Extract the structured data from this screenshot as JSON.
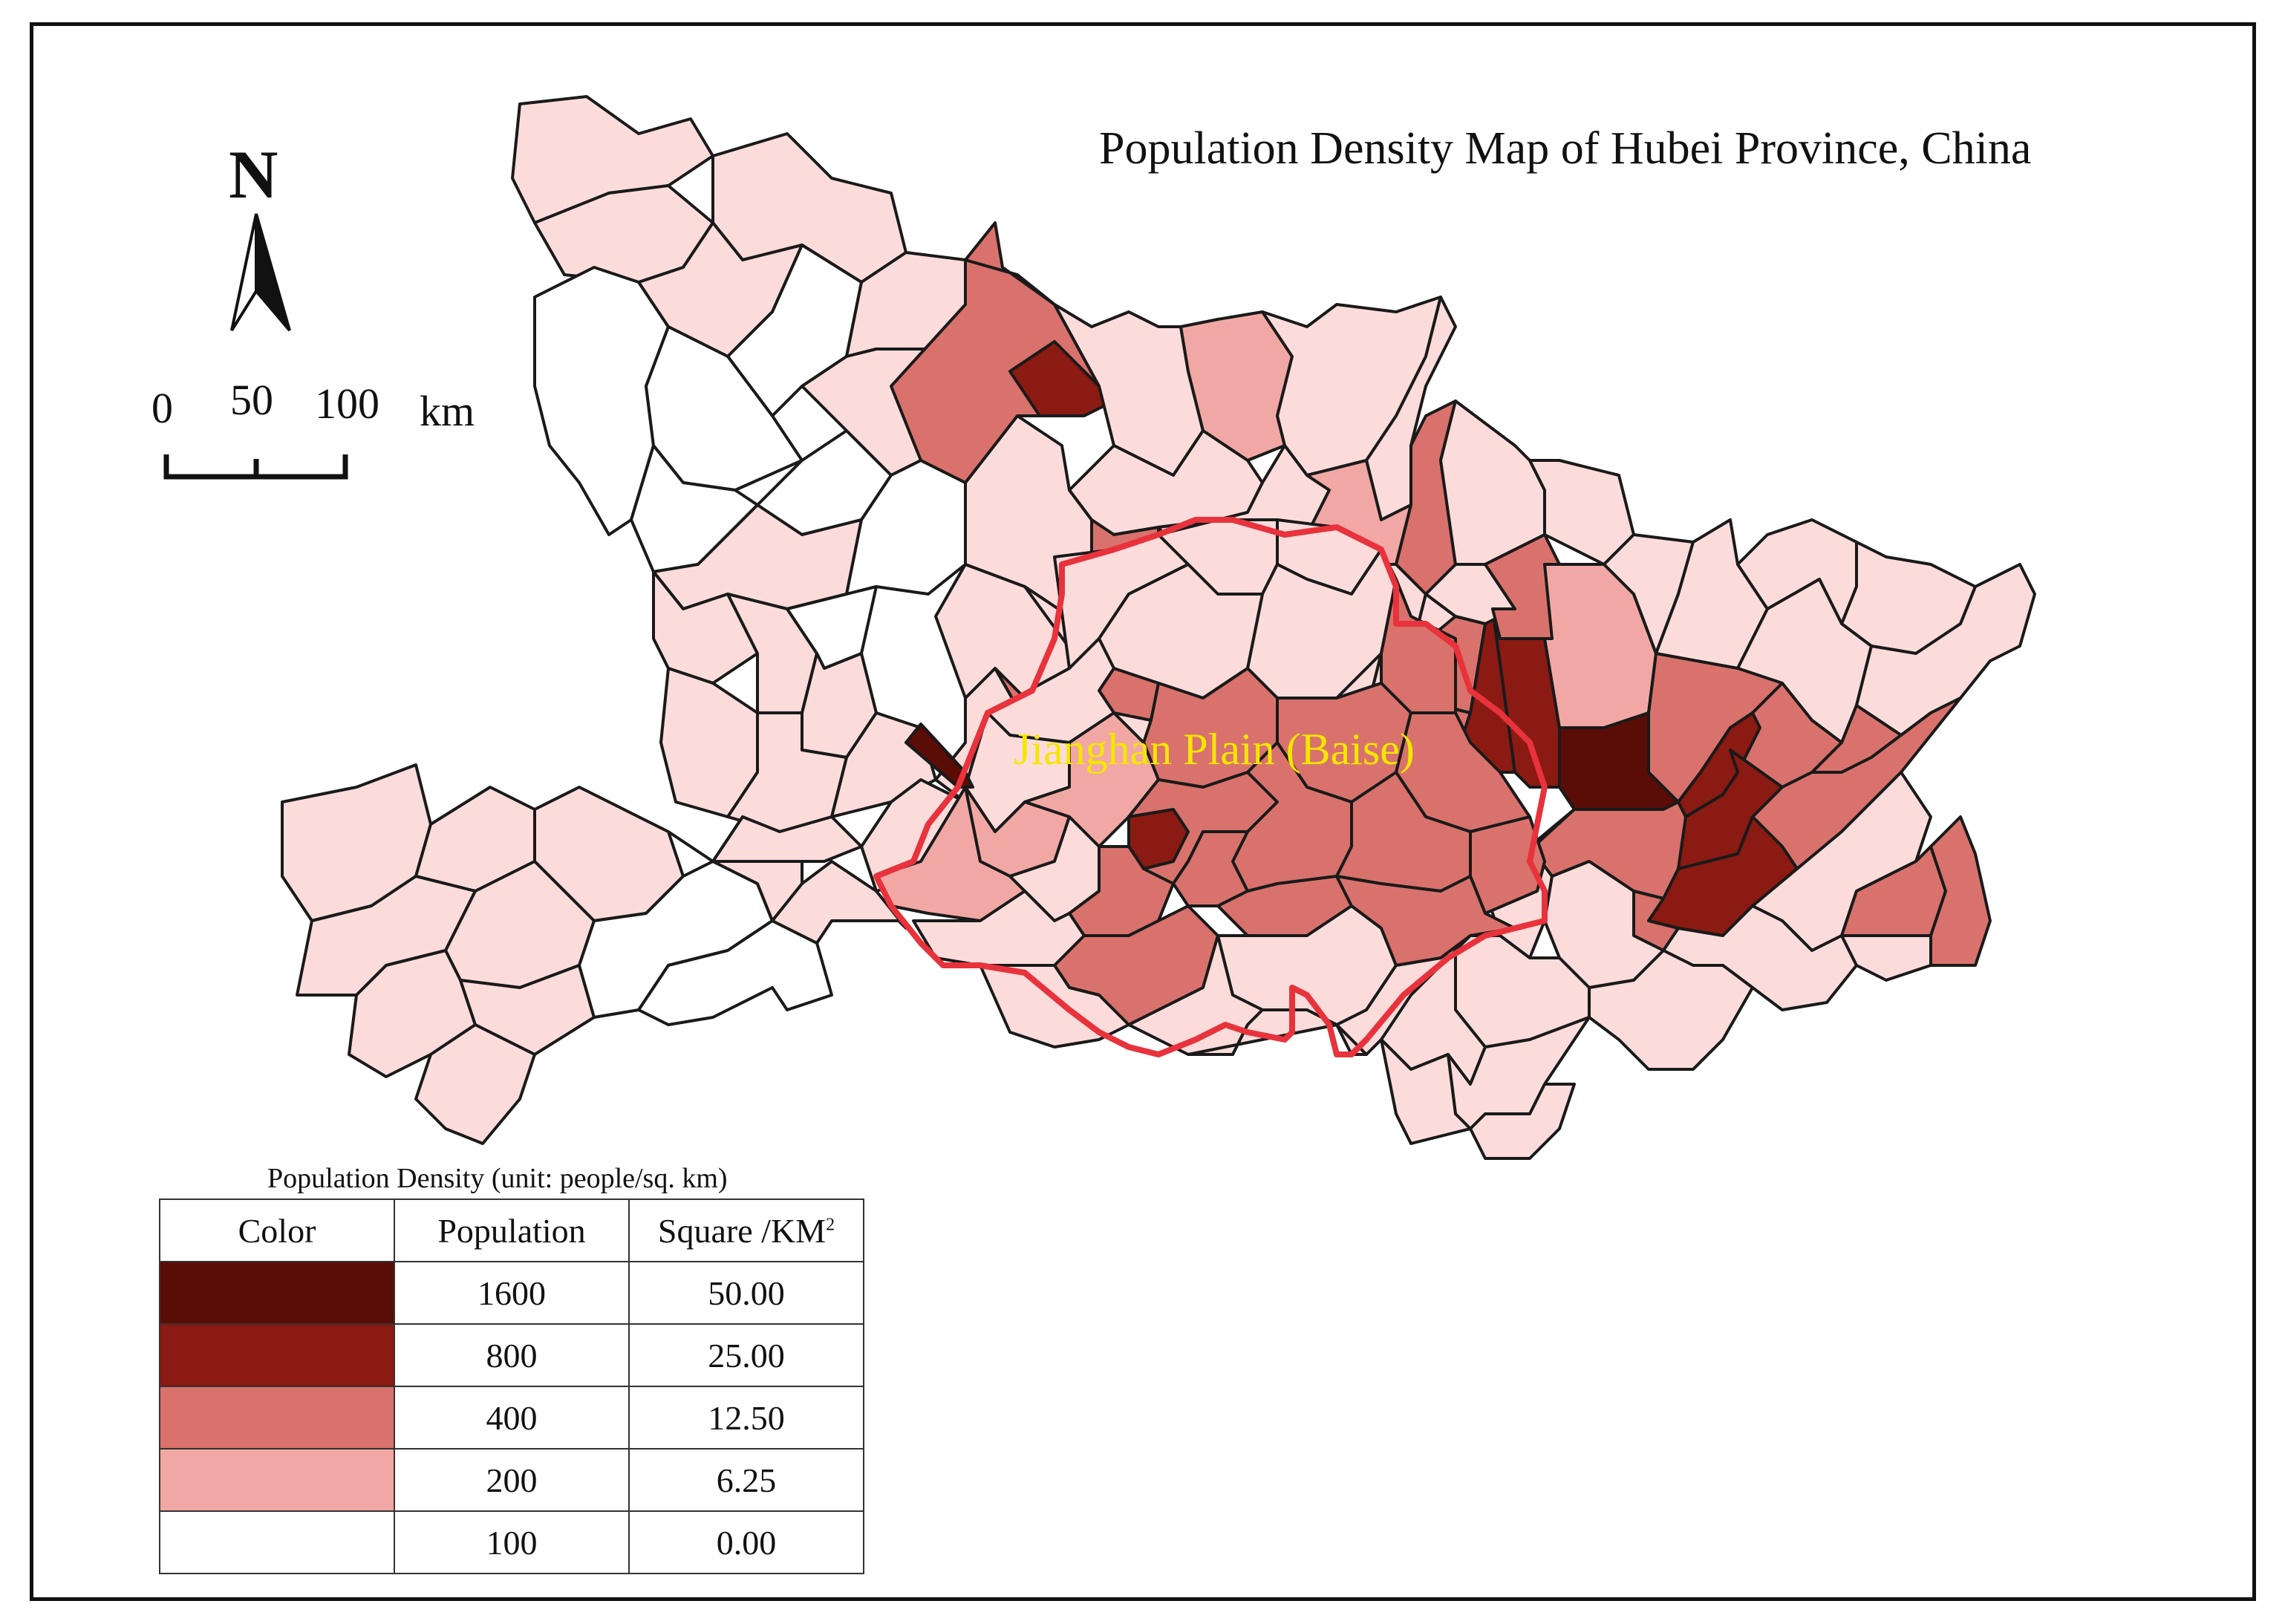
{
  "title": "Population Density Map of Hubei Province, China",
  "north": {
    "letter": "N",
    "icon": "north-arrow-icon"
  },
  "scale_bar": {
    "labels": [
      "0",
      "50",
      "100"
    ],
    "unit": "km"
  },
  "region_label": "Jianghan Plain (Baise)",
  "colors": {
    "outline": "#1a1a1a",
    "plain_boundary": "#e8323c",
    "plain_label": "#f5e600",
    "class_1600": "#5a0c06",
    "class_800": "#8b1a12",
    "class_400": "#d9726c",
    "class_200": "#f1a8a4",
    "class_100": "#ffffff",
    "light_pink": "#fcdcdb"
  },
  "legend": {
    "title": "Population Density (unit: people/sq. km)",
    "headers": {
      "color": "Color",
      "population": "Population",
      "square": "Square /KM",
      "square_sup": "2"
    },
    "rows": [
      {
        "color": "#5a0c06",
        "population": "1600",
        "square": "50.00"
      },
      {
        "color": "#8b1a12",
        "population": "800",
        "square": "25.00"
      },
      {
        "color": "#d9726c",
        "population": "400",
        "square": "12.50"
      },
      {
        "color": "#f1a8a4",
        "population": "200",
        "square": "6.25"
      },
      {
        "color": "#ffffff",
        "population": "100",
        "square": "0.00"
      }
    ]
  }
}
